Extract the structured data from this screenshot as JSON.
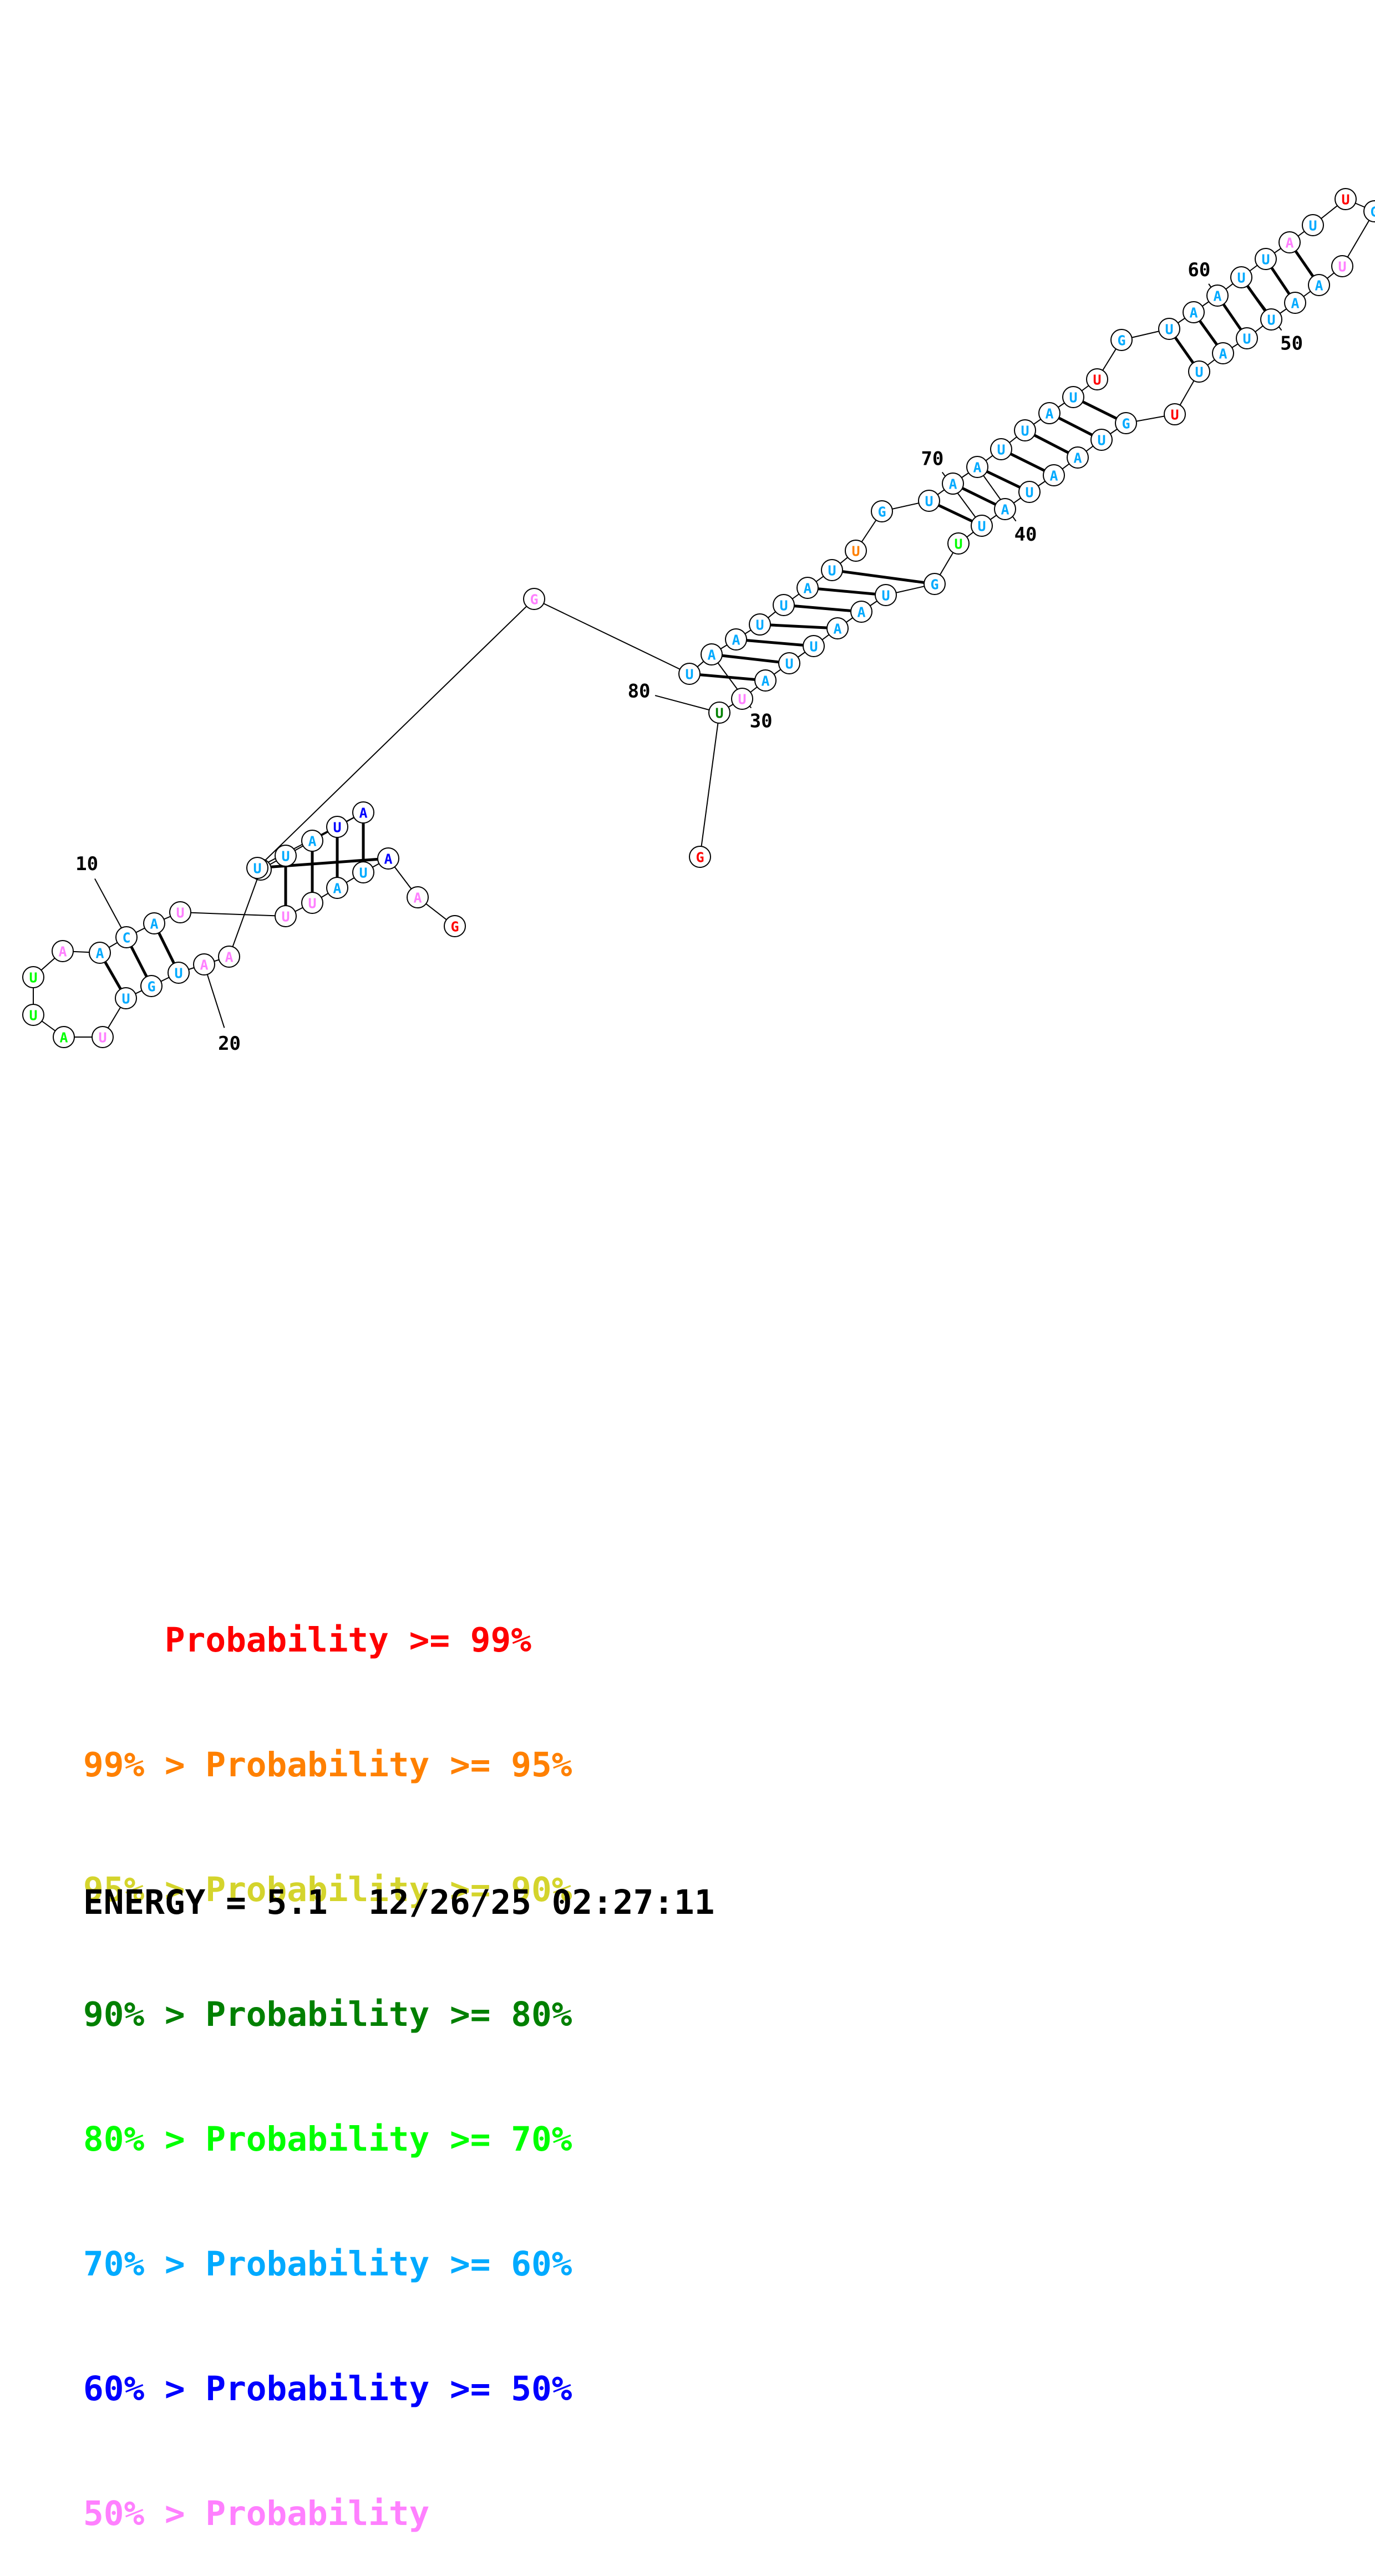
{
  "colors": {
    "p99": "#ff0000",
    "p95": "#ff8000",
    "p90": "#d4d42c",
    "p80": "#008000",
    "p70": "#00ff00",
    "p60": "#00aaff",
    "p50": "#0000ff",
    "plow": "#ff80ff"
  },
  "nucleotides": [
    {
      "n": 1,
      "b": "G",
      "c": "p99"
    },
    {
      "n": 2,
      "b": "A",
      "c": "plow"
    },
    {
      "n": 3,
      "b": "A",
      "c": "p50"
    },
    {
      "n": 4,
      "b": "U",
      "c": "p60"
    },
    {
      "n": 5,
      "b": "A",
      "c": "p60"
    },
    {
      "n": 6,
      "b": "U",
      "c": "plow"
    },
    {
      "n": 7,
      "b": "U",
      "c": "plow"
    },
    {
      "n": 8,
      "b": "U",
      "c": "plow"
    },
    {
      "n": 9,
      "b": "A",
      "c": "p60"
    },
    {
      "n": 10,
      "b": "C",
      "c": "p60"
    },
    {
      "n": 11,
      "b": "A",
      "c": "p60"
    },
    {
      "n": 12,
      "b": "A",
      "c": "plow"
    },
    {
      "n": 13,
      "b": "U",
      "c": "p70"
    },
    {
      "n": 14,
      "b": "U",
      "c": "p70"
    },
    {
      "n": 15,
      "b": "A",
      "c": "p70"
    },
    {
      "n": 16,
      "b": "U",
      "c": "plow"
    },
    {
      "n": 17,
      "b": "U",
      "c": "p60"
    },
    {
      "n": 18,
      "b": "G",
      "c": "p60"
    },
    {
      "n": 19,
      "b": "U",
      "c": "p60"
    },
    {
      "n": 20,
      "b": "A",
      "c": "plow"
    },
    {
      "n": 21,
      "b": "A",
      "c": "plow"
    },
    {
      "n": 22,
      "b": "U",
      "c": "p50"
    },
    {
      "n": 23,
      "b": "U",
      "c": "p60"
    },
    {
      "n": 24,
      "b": "A",
      "c": "p60"
    },
    {
      "n": 25,
      "b": "U",
      "c": "p50"
    },
    {
      "n": 26,
      "b": "A",
      "c": "p50"
    },
    {
      "n": 27,
      "b": "U",
      "c": "p60"
    },
    {
      "n": 28,
      "b": "G",
      "c": "plow"
    },
    {
      "n": 29,
      "b": "U",
      "c": "p60"
    },
    {
      "n": 30,
      "b": "A",
      "c": "p60"
    },
    {
      "n": 31,
      "b": "A",
      "c": "p60"
    },
    {
      "n": 32,
      "b": "U",
      "c": "p60"
    },
    {
      "n": 33,
      "b": "U",
      "c": "p60"
    },
    {
      "n": 34,
      "b": "A",
      "c": "p60"
    },
    {
      "n": 35,
      "b": "U",
      "c": "p60"
    },
    {
      "n": 36,
      "b": "U",
      "c": "p95"
    },
    {
      "n": 37,
      "b": "G",
      "c": "p60"
    },
    {
      "n": 38,
      "b": "U",
      "c": "p60"
    },
    {
      "n": 39,
      "b": "A",
      "c": "p60"
    },
    {
      "n": 40,
      "b": "A",
      "c": "p60"
    },
    {
      "n": 41,
      "b": "U",
      "c": "p60"
    },
    {
      "n": 42,
      "b": "U",
      "c": "p60"
    },
    {
      "n": 43,
      "b": "A",
      "c": "p60"
    },
    {
      "n": 44,
      "b": "U",
      "c": "p60"
    },
    {
      "n": 45,
      "b": "U",
      "c": "p99"
    },
    {
      "n": 46,
      "b": "G",
      "c": "p60"
    },
    {
      "n": 47,
      "b": "U",
      "c": "p60"
    },
    {
      "n": 48,
      "b": "A",
      "c": "p60"
    },
    {
      "n": 49,
      "b": "A",
      "c": "p60"
    },
    {
      "n": 50,
      "b": "U",
      "c": "p60"
    },
    {
      "n": 51,
      "b": "U",
      "c": "p60"
    },
    {
      "n": 52,
      "b": "A",
      "c": "plow"
    },
    {
      "n": 53,
      "b": "U",
      "c": "p60"
    },
    {
      "n": 54,
      "b": "U",
      "c": "p99"
    },
    {
      "n": 55,
      "b": "G",
      "c": "p60"
    },
    {
      "n": 56,
      "b": "U",
      "c": "plow"
    },
    {
      "n": 57,
      "b": "A",
      "c": "p60"
    },
    {
      "n": 58,
      "b": "A",
      "c": "p60"
    },
    {
      "n": 59,
      "b": "U",
      "c": "p60"
    },
    {
      "n": 60,
      "b": "U",
      "c": "p60"
    },
    {
      "n": 61,
      "b": "A",
      "c": "p60"
    },
    {
      "n": 62,
      "b": "U",
      "c": "p60"
    },
    {
      "n": 63,
      "b": "U",
      "c": "p99"
    },
    {
      "n": 64,
      "b": "G",
      "c": "p60"
    },
    {
      "n": 65,
      "b": "U",
      "c": "p60"
    },
    {
      "n": 66,
      "b": "A",
      "c": "p60"
    },
    {
      "n": 67,
      "b": "A",
      "c": "p60"
    },
    {
      "n": 68,
      "b": "U",
      "c": "p60"
    },
    {
      "n": 69,
      "b": "A",
      "c": "p60"
    },
    {
      "n": 70,
      "b": "U",
      "c": "p60"
    },
    {
      "n": 71,
      "b": "U",
      "c": "p70"
    },
    {
      "n": 72,
      "b": "G",
      "c": "p60"
    },
    {
      "n": 73,
      "b": "U",
      "c": "p60"
    },
    {
      "n": 74,
      "b": "A",
      "c": "p60"
    },
    {
      "n": 75,
      "b": "A",
      "c": "p60"
    },
    {
      "n": 76,
      "b": "U",
      "c": "p60"
    },
    {
      "n": 77,
      "b": "U",
      "c": "p60"
    },
    {
      "n": 78,
      "b": "A",
      "c": "p60"
    },
    {
      "n": 79,
      "b": "U",
      "c": "plow"
    },
    {
      "n": 80,
      "b": "U",
      "c": "p80"
    },
    {
      "n": 81,
      "b": "G",
      "c": "p99"
    }
  ],
  "pairs": [
    [
      3,
      27
    ],
    [
      4,
      26
    ],
    [
      5,
      25
    ],
    [
      6,
      24
    ],
    [
      7,
      23
    ],
    [
      9,
      19
    ],
    [
      10,
      18
    ],
    [
      11,
      17
    ],
    [
      29,
      78
    ],
    [
      30,
      77
    ],
    [
      31,
      76
    ],
    [
      32,
      75
    ],
    [
      33,
      74
    ],
    [
      34,
      73
    ],
    [
      35,
      72
    ],
    [
      38,
      70
    ],
    [
      39,
      69
    ],
    [
      40,
      68
    ],
    [
      41,
      67
    ],
    [
      42,
      66
    ],
    [
      43,
      65
    ],
    [
      44,
      64
    ],
    [
      47,
      62
    ],
    [
      48,
      61
    ],
    [
      49,
      60
    ],
    [
      50,
      59
    ],
    [
      51,
      58
    ],
    [
      52,
      57
    ]
  ],
  "index_labels": [
    "10",
    "20",
    "30",
    "40",
    "50",
    "60",
    "70",
    "80"
  ],
  "legend": [
    {
      "prefix": "    ",
      "text": "Probability >= 99%",
      "c": "p99"
    },
    {
      "prefix": "99% > ",
      "text": "Probability >= 95%",
      "c": "p95"
    },
    {
      "prefix": "95% > ",
      "text": "Probability >= 90%",
      "c": "p90"
    },
    {
      "prefix": "90% > ",
      "text": "Probability >= 80%",
      "c": "p80"
    },
    {
      "prefix": "80% > ",
      "text": "Probability >= 70%",
      "c": "p70"
    },
    {
      "prefix": "70% > ",
      "text": "Probability >= 60%",
      "c": "p60"
    },
    {
      "prefix": "60% > ",
      "text": "Probability >= 50%",
      "c": "p50"
    },
    {
      "prefix": "50% > ",
      "text": "Probability",
      "c": "plow"
    }
  ],
  "energy_line": "ENERGY = 5.1  12/26/25 02:27:11"
}
